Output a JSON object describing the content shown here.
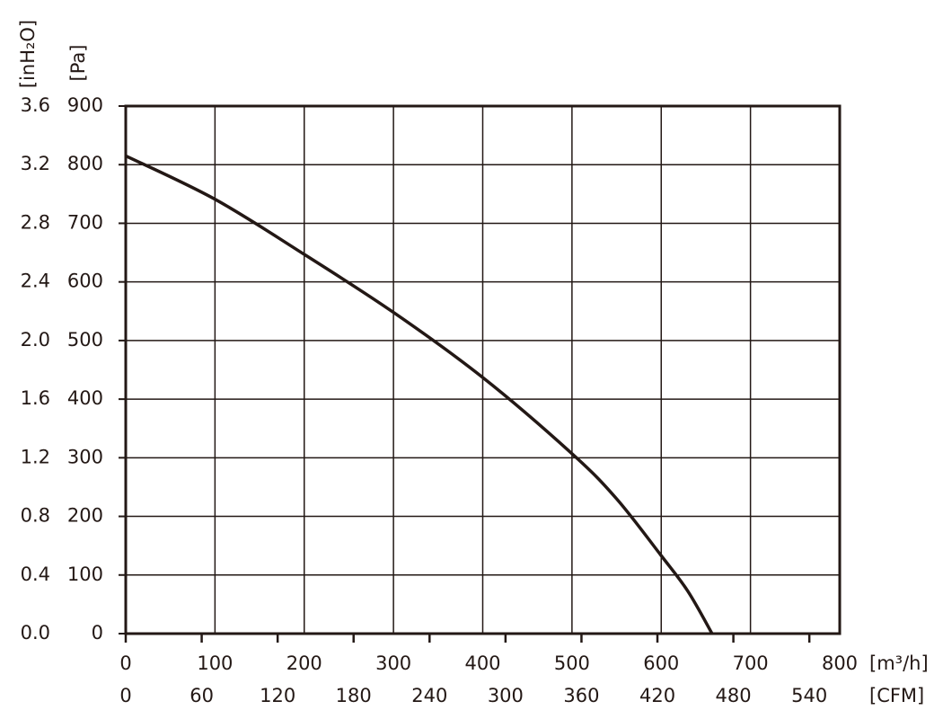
{
  "chart_data": {
    "type": "line",
    "x": [
      0,
      100,
      200,
      300,
      400,
      500,
      550,
      600,
      630,
      657
    ],
    "series": [
      {
        "color": "#231815",
        "values": [
          815,
          741,
          647,
          548,
          437,
          307,
          230,
          133,
          72,
          0
        ]
      }
    ],
    "xlim": [
      0,
      800
    ],
    "xticks": [
      0,
      100,
      200,
      300,
      400,
      500,
      600,
      700,
      800
    ],
    "x2lim": [
      0,
      564
    ],
    "x2ticks": [
      0,
      60,
      120,
      180,
      240,
      300,
      360,
      420,
      480,
      540
    ],
    "ylim": [
      0,
      900
    ],
    "yticks": [
      0,
      100,
      200,
      300,
      400,
      500,
      600,
      700,
      800,
      900
    ],
    "y2lim": [
      0,
      3.6
    ],
    "y2ticks": [
      {
        "value": 0,
        "label": "0.0"
      },
      0.4,
      0.8,
      1.2,
      1.6,
      {
        "value": 2,
        "label": "2.0"
      },
      2.4,
      2.8,
      3.2,
      3.6
    ],
    "xlabel": "[m³/h]",
    "x2label": "[CFM]",
    "ylabel": "[Pa]",
    "y2label": "[inH₂O]",
    "grid": true
  }
}
